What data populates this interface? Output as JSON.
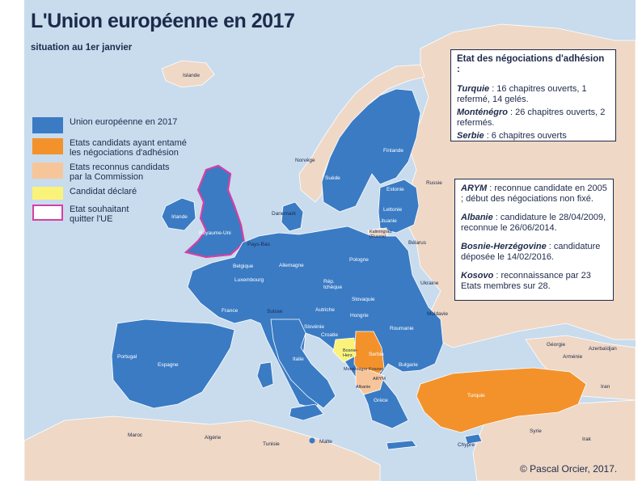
{
  "title": "L'Union européenne en 2017",
  "subtitle": "situation au 1er janvier",
  "colors": {
    "sea": "#c8dcee",
    "non_eu_land": "#efd8c6",
    "eu": "#3a7bc4",
    "candidate_negotiating": "#f3922b",
    "recognized_candidate": "#f6c69a",
    "declared_candidate": "#fbf27a",
    "leaving_border": "#d63fa4",
    "text": "#1e2a4a"
  },
  "legend": [
    {
      "label": "Union européenne en 2017",
      "swatch": "eu"
    },
    {
      "label": "Etats candidats ayant entamé\nles négociations d'adhésion",
      "swatch": "candidate_negotiating"
    },
    {
      "label": "Etats reconnus candidats\npar la Commission",
      "swatch": "recognized_candidate"
    },
    {
      "label": "Candidat déclaré",
      "swatch": "declared_candidate"
    },
    {
      "label": "Etat souhaitant\nquitter l'UE",
      "swatch": "leaving"
    }
  ],
  "negotiations_box": {
    "heading": "Etat des négociations d'adhésion :",
    "entries": [
      {
        "country": "Turquie",
        "text": " : 16 chapitres ouverts, 1 refermé, 14 gelés."
      },
      {
        "country": "Monténégro",
        "text": " : 26 chapitres ouverts, 2 refermés."
      },
      {
        "country": "Serbie",
        "text": " : 6 chapitres ouverts"
      }
    ]
  },
  "candidates_box": {
    "entries": [
      {
        "country": "ARYM",
        "text": " : reconnue candidate en 2005 ; début des négociations non fixé."
      },
      {
        "country": "Albanie",
        "text": " : candidature le 28/04/2009, reconnue le 26/06/2014."
      },
      {
        "country": "Bosnie-Herzégovine",
        "text": " : candidature déposée le 14/02/2016."
      },
      {
        "country": "Kosovo",
        "text": " : reconnaissance par 23 Etats membres sur 28."
      }
    ]
  },
  "credit": "© Pascal Orcier, 2017.",
  "labels": {
    "islande": "Islande",
    "norvege": "Norvège",
    "suede": "Suède",
    "finlande": "Finlande",
    "russie": "Russie",
    "estonie": "Estonie",
    "lettonie": "Lettonie",
    "lituanie": "Lituanie",
    "kaliningrad": "Kaliningrad\n(Russie)",
    "belarus": "Bélarus",
    "danemark": "Danemark",
    "irlande": "Irlande",
    "royaume_uni": "Royaume-Uni",
    "pays_bas": "Pays-Bas",
    "belgique": "Belgique",
    "luxembourg": "Luxembourg",
    "allemagne": "Allemagne",
    "pologne": "Pologne",
    "rep_tcheque": "Rép.\ntchèque",
    "slovaquie": "Slovaquie",
    "ukraine": "Ukraine",
    "moldavie": "Moldavie",
    "autriche": "Autriche",
    "hongrie": "Hongrie",
    "roumanie": "Roumanie",
    "france": "France",
    "suisse": "Suisse",
    "slovenie": "Slovénie",
    "croatie": "Croatie",
    "bosnie_herz": "Bosnie-\nHerz.",
    "serbie": "Serbie",
    "montenegro": "Monténégro",
    "kosovo": "Kosovo",
    "arym": "ARYM",
    "albanie": "Albanie",
    "bulgarie": "Bulgarie",
    "italie": "Italie",
    "grece": "Grèce",
    "turquie": "Turquie",
    "georgie": "Géorgie",
    "armenie": "Arménie",
    "azerbaidjan": "Azerbaïdjan",
    "iran": "Iran",
    "syrie": "Syrie",
    "irak": "Irak",
    "chypre": "Chypre",
    "portugal": "Portugal",
    "espagne": "Espagne",
    "maroc": "Maroc",
    "algerie": "Algérie",
    "tunisie": "Tunisie",
    "malte": "Malte"
  }
}
